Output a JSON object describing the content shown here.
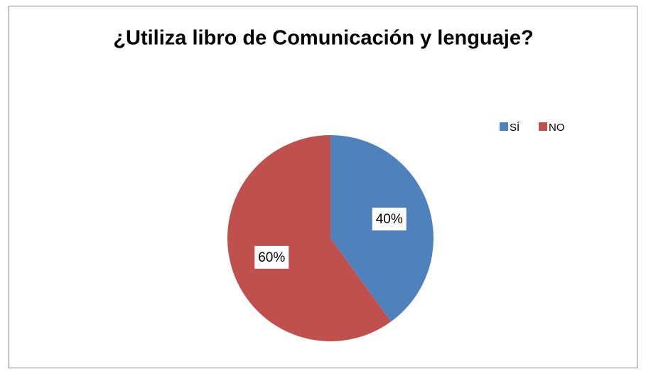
{
  "chart_data": {
    "type": "pie",
    "title": "¿Utiliza libro de Comunicación y lenguaje?",
    "categories": [
      "SÍ",
      "NO"
    ],
    "values": [
      40,
      60
    ],
    "value_labels": [
      "40%",
      "60%"
    ],
    "colors": [
      "#4f81bd",
      "#c0504d"
    ],
    "legend": "top-right"
  }
}
